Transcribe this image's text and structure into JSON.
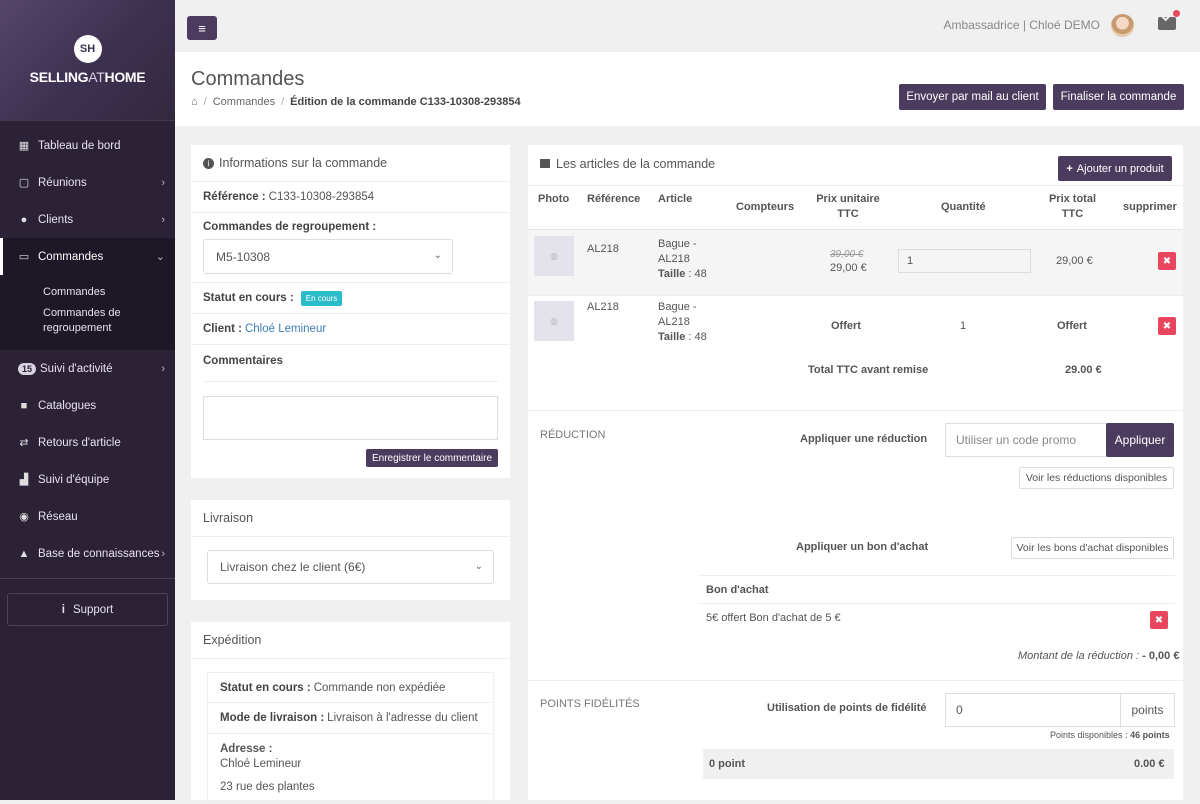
{
  "brand": {
    "logo_initials": "SH",
    "name_part1": "SELLING",
    "name_part2": "AT",
    "name_part3": "HOME"
  },
  "sidebar": {
    "items": [
      {
        "label": "Tableau de bord",
        "icon": "dashboard-icon"
      },
      {
        "label": "Réunions",
        "icon": "calendar-icon"
      },
      {
        "label": "Clients",
        "icon": "users-icon"
      },
      {
        "label": "Commandes",
        "icon": "card-icon"
      },
      {
        "label": "Suivi d'activité",
        "icon": "activity-icon",
        "badge": "15"
      },
      {
        "label": "Catalogues",
        "icon": "book-icon"
      },
      {
        "label": "Retours d'article",
        "icon": "exchange-icon"
      },
      {
        "label": "Suivi d'équipe",
        "icon": "team-icon"
      },
      {
        "label": "Réseau",
        "icon": "globe-icon"
      },
      {
        "label": "Base de connaissances",
        "icon": "graduation-icon"
      }
    ],
    "sub_items": [
      "Commandes",
      "Commandes de regroupement"
    ],
    "support_label": "Support"
  },
  "topbar": {
    "user": "Ambassadrice | Chloé DEMO"
  },
  "header": {
    "title": "Commandes",
    "breadcrumb": [
      "Commandes",
      "Édition de la commande C133-10308-293854"
    ],
    "send_mail": "Envoyer par mail au client",
    "finalize": "Finaliser la commande"
  },
  "info": {
    "title": "Informations sur la commande",
    "ref_label": "Référence :",
    "ref_value": "C133-10308-293854",
    "group_label": "Commandes de regroupement :",
    "group_value": "M5-10308",
    "status_label": "Statut en cours :",
    "status_badge": "En cours",
    "client_label": "Client :",
    "client_value": "Chloé Lemineur",
    "comments_label": "Commentaires",
    "save_comment": "Enregistrer le commentaire"
  },
  "delivery": {
    "title": "Livraison",
    "value": "Livraison chez le client (6€)"
  },
  "shipping": {
    "title": "Expédition",
    "status_label": "Statut en cours :",
    "status_value": "Commande non expédiée",
    "mode_label": "Mode de livraison :",
    "mode_value": "Livraison à l'adresse du client",
    "address_label": "Adresse :",
    "address_name": "Chloé Lemineur",
    "address_street": "23 rue des plantes"
  },
  "articles": {
    "title": "Les articles de la commande",
    "add_product": "Ajouter un produit",
    "columns": [
      "Photo",
      "Référence",
      "Article",
      "Compteurs",
      "Prix unitaire TTC",
      "Quantité",
      "Prix total TTC",
      "supprimer"
    ],
    "rows": [
      {
        "ref": "AL218",
        "name": "Bague - AL218",
        "size_label": "Taille",
        "size": "48",
        "old_price": "39,00 €",
        "price": "29,00 €",
        "qty": "1",
        "total": "29,00 €"
      },
      {
        "ref": "AL218",
        "name": "Bague - AL218",
        "size_label": "Taille",
        "size": "48",
        "price": "Offert",
        "qty": "1",
        "total": "Offert"
      }
    ],
    "total_label": "Total TTC avant remise",
    "total_value": "29.00 €"
  },
  "reduction": {
    "section": "RÉDUCTION",
    "apply_label": "Appliquer une réduction",
    "promo_placeholder": "Utiliser un code promo",
    "apply_btn": "Appliquer",
    "see_reductions": "Voir les réductions disponibles",
    "voucher_label": "Appliquer un bon d'achat",
    "see_vouchers": "Voir les bons d'achat disponibles",
    "voucher_header": "Bon d'achat",
    "voucher_item": "5€ offert Bon d'achat de 5 €",
    "amount_label": "Montant de la réduction :",
    "amount_value": "- 0,00 €"
  },
  "loyalty": {
    "section": "POINTS FIDÉLITÉS",
    "use_label": "Utilisation de points de fidélité",
    "points_value": "0",
    "points_unit": "points",
    "available_label": "Points disponibles :",
    "available_value": "46 points",
    "footer_left": "0 point",
    "footer_right": "0.00 €"
  }
}
